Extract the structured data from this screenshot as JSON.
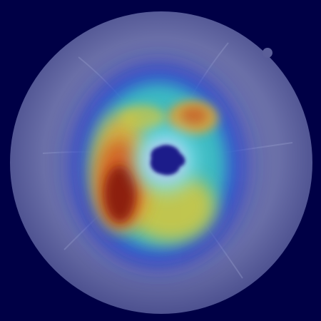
{
  "image": {
    "subject": "fundus-heatmap",
    "colors": {
      "background": "#000046",
      "fundus": "#6a6fa8",
      "heat_low": "#1e35d8",
      "heat_mid": "#3fd0c0",
      "heat_warm": "#d8c83a",
      "heat_hot": "#8a1a0e",
      "optic_disc": "#1c1a8a"
    }
  }
}
